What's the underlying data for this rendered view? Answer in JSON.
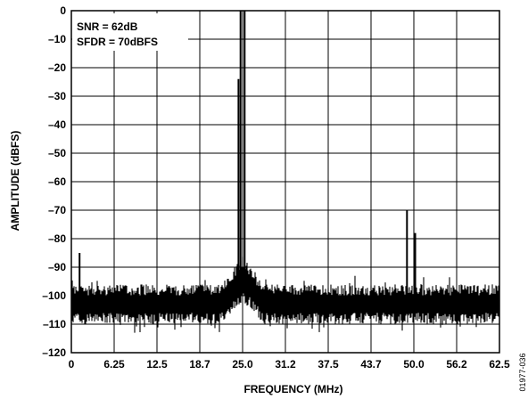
{
  "chart_data": {
    "type": "line",
    "title": "",
    "xlabel": "FREQUENCY (MHz)",
    "ylabel": "AMPLITUDE (dBFS)",
    "xlim": [
      0,
      62.5
    ],
    "ylim": [
      -120,
      0
    ],
    "x_tick_labels": [
      "0",
      "6.25",
      "12.5",
      "18.7",
      "25.0",
      "31.2",
      "37.5",
      "43.7",
      "50.0",
      "56.2",
      "62.5"
    ],
    "y_tick_labels": [
      "0",
      "–10",
      "–20",
      "–30",
      "–40",
      "–50",
      "–60",
      "–70",
      "–80",
      "–90",
      "–100",
      "–110",
      "–120"
    ],
    "grid": true,
    "annotations": [
      "SNR = 62dB",
      "SFDR = 70dBFS"
    ],
    "noise_floor_dbfs": [
      -108,
      -98
    ],
    "series": [
      {
        "values_description_points": [
          {
            "x": 1.2,
            "y": -85
          },
          {
            "x": 24.4,
            "y": -24
          },
          {
            "x": 24.7,
            "y": 0
          },
          {
            "x": 25.3,
            "y": 0
          },
          {
            "x": 49.0,
            "y": -70
          },
          {
            "x": 50.2,
            "y": -78
          }
        ]
      }
    ]
  },
  "figure_id": "01977-036"
}
